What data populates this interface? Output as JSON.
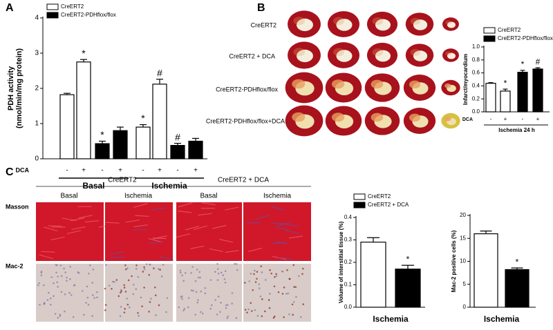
{
  "panel_labels": [
    "A",
    "B",
    "C"
  ],
  "heart_image_labels": [
    "CreERT2",
    "CreERT2 + DCA",
    "CreERT2-PDHflox/flox",
    "CreERT2-PDHflox/flox+DCA"
  ],
  "histology": {
    "groups": [
      "CreERT2",
      "CreERT2 + DCA"
    ],
    "conditions": [
      "Basal",
      "Ischemia",
      "Basal",
      "Ischemia"
    ],
    "stains": [
      "Masson",
      "Mac-2"
    ]
  },
  "chart_data": [
    {
      "type": "bar",
      "ylabel": [
        "PDH activity",
        "(nmol/min/mg protein)"
      ],
      "categories": [
        "-",
        "+",
        "-",
        "+",
        "-",
        "+",
        "-",
        "+"
      ],
      "category_row_label": "DCA",
      "groups": [
        "Basal",
        "Ischemia"
      ],
      "series": [
        {
          "name": "CreERT2",
          "color": "#ffffff",
          "values": [
            1.82,
            2.75,
            null,
            null,
            0.9,
            2.12,
            null,
            null
          ],
          "errors": [
            0.04,
            0.07,
            null,
            null,
            0.07,
            0.14,
            null,
            null
          ],
          "annotations": [
            null,
            "*",
            null,
            null,
            "*",
            "#",
            null,
            null
          ]
        },
        {
          "name": "CreERT2-PDHflox/flox",
          "color": "#000000",
          "values": [
            null,
            null,
            0.43,
            0.8,
            null,
            null,
            0.38,
            0.5
          ],
          "errors": [
            null,
            null,
            0.07,
            0.1,
            null,
            null,
            0.06,
            0.08
          ],
          "annotations": [
            null,
            null,
            "*",
            null,
            null,
            null,
            "#",
            null
          ]
        }
      ],
      "ylim": [
        0,
        4
      ],
      "yticks": [
        0,
        1,
        2,
        3,
        4
      ]
    },
    {
      "type": "bar",
      "ylabel": "Infarct/myocardium",
      "categories": [
        "-",
        "+",
        "-",
        "+"
      ],
      "category_row_label": "DCA",
      "xlabel": "Ischemia 24 h",
      "series": [
        {
          "name": "CreERT2",
          "color": "#ffffff",
          "values": [
            0.44,
            0.32,
            null,
            null
          ],
          "errors": [
            0.01,
            0.03,
            null,
            null
          ],
          "annotations": [
            null,
            "*",
            null,
            null
          ]
        },
        {
          "name": "CreERT2-PDHflox/flox",
          "color": "#000000",
          "values": [
            null,
            null,
            0.61,
            0.66
          ],
          "errors": [
            null,
            null,
            0.03,
            0.02
          ],
          "annotations": [
            null,
            null,
            "*",
            "#"
          ]
        }
      ],
      "ylim": [
        0,
        1
      ],
      "yticks": [
        {
          "value": 0,
          "label": "0.0"
        },
        0.2,
        0.4,
        0.6,
        0.8,
        {
          "value": 1,
          "label": "1.0"
        }
      ]
    },
    {
      "type": "bar",
      "ylabel": "Volume of interstitial tissue (%)",
      "categories": [
        "Ischemia"
      ],
      "series": [
        {
          "name": "CreERT2",
          "color": "#ffffff",
          "values": [
            0.29
          ],
          "errors": [
            0.02
          ]
        },
        {
          "name": "CreERT2 + DCA",
          "color": "#000000",
          "values": [
            0.17
          ],
          "errors": [
            0.017
          ],
          "annotations": [
            "*"
          ]
        }
      ],
      "ylim": [
        0,
        0.4
      ],
      "yticks": [
        {
          "value": 0,
          "label": "0.0"
        },
        0.1,
        0.2,
        0.3,
        0.4
      ]
    },
    {
      "type": "bar",
      "ylabel": "Mac-2 positive cells (%)",
      "categories": [
        "Ischemia"
      ],
      "series": [
        {
          "color": "#ffffff",
          "values": [
            16
          ],
          "errors": [
            0.6
          ]
        },
        {
          "color": "#000000",
          "values": [
            8.2
          ],
          "errors": [
            0.35
          ],
          "annotations": [
            "*"
          ]
        }
      ],
      "ylim": [
        0,
        20
      ],
      "yticks": [
        0,
        5,
        10,
        15,
        20
      ]
    }
  ]
}
